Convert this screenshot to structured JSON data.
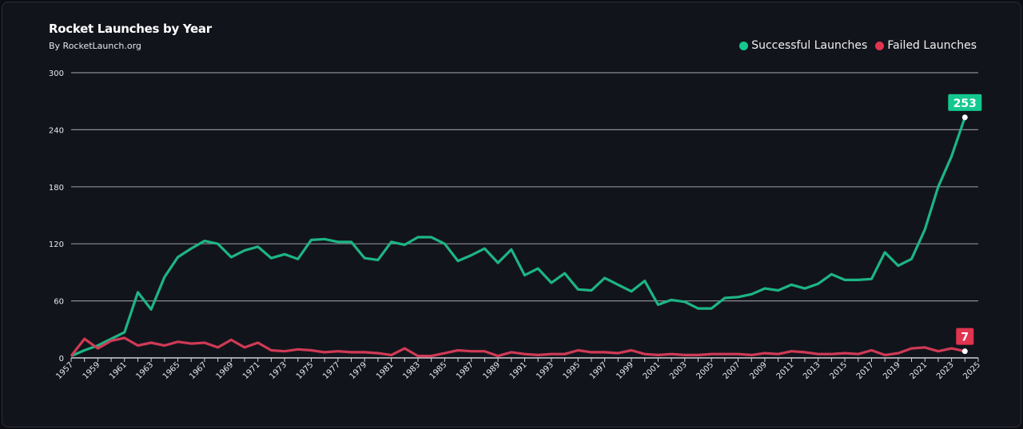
{
  "chart_data": {
    "type": "line",
    "title": "Rocket Launches by Year",
    "subtitle": "By RocketLaunch.org",
    "xlabel": "",
    "ylabel": "",
    "xlim": [
      1957,
      2025
    ],
    "ylim": [
      0,
      300
    ],
    "yticks": [
      0,
      60,
      120,
      180,
      240,
      300
    ],
    "xticks": [
      1957,
      1959,
      1961,
      1963,
      1965,
      1967,
      1969,
      1971,
      1973,
      1975,
      1977,
      1979,
      1981,
      1983,
      1985,
      1987,
      1989,
      1991,
      1993,
      1995,
      1997,
      1999,
      2001,
      2003,
      2005,
      2007,
      2009,
      2011,
      2013,
      2015,
      2017,
      2019,
      2021,
      2023,
      2025
    ],
    "grid": true,
    "legend_position": "top-right",
    "x": [
      1957,
      1958,
      1959,
      1960,
      1961,
      1962,
      1963,
      1964,
      1965,
      1966,
      1967,
      1968,
      1969,
      1970,
      1971,
      1972,
      1973,
      1974,
      1975,
      1976,
      1977,
      1978,
      1979,
      1980,
      1981,
      1982,
      1983,
      1984,
      1985,
      1986,
      1987,
      1988,
      1989,
      1990,
      1991,
      1992,
      1993,
      1994,
      1995,
      1996,
      1997,
      1998,
      1999,
      2000,
      2001,
      2002,
      2003,
      2004,
      2005,
      2006,
      2007,
      2008,
      2009,
      2010,
      2011,
      2012,
      2013,
      2014,
      2015,
      2016,
      2017,
      2018,
      2019,
      2020,
      2021,
      2022,
      2023,
      2024
    ],
    "series": [
      {
        "name": "Successful Launches",
        "color": "#1db584",
        "label_color": "#14c98f",
        "end_label": "253",
        "values": [
          2,
          8,
          13,
          20,
          27,
          69,
          51,
          85,
          106,
          115,
          123,
          120,
          106,
          113,
          117,
          105,
          109,
          104,
          124,
          125,
          122,
          122,
          105,
          103,
          122,
          119,
          127,
          127,
          120,
          102,
          108,
          115,
          100,
          114,
          87,
          94,
          79,
          89,
          72,
          71,
          84,
          77,
          70,
          81,
          56,
          61,
          59,
          52,
          52,
          63,
          64,
          67,
          73,
          71,
          77,
          73,
          78,
          88,
          82,
          82,
          83,
          111,
          97,
          104,
          135,
          180,
          212,
          253
        ]
      },
      {
        "name": "Failed Launches",
        "color": "#cf3a55",
        "label_color": "#e0344f",
        "end_label": "7",
        "values": [
          2,
          20,
          10,
          18,
          21,
          13,
          16,
          13,
          17,
          15,
          16,
          11,
          19,
          11,
          16,
          8,
          7,
          9,
          8,
          6,
          7,
          6,
          6,
          5,
          3,
          10,
          2,
          2,
          5,
          8,
          7,
          7,
          2,
          6,
          4,
          3,
          4,
          4,
          8,
          6,
          6,
          5,
          8,
          4,
          3,
          4,
          3,
          3,
          4,
          4,
          4,
          3,
          5,
          4,
          7,
          6,
          4,
          4,
          5,
          4,
          8,
          3,
          5,
          10,
          11,
          7,
          10,
          7
        ]
      }
    ]
  }
}
